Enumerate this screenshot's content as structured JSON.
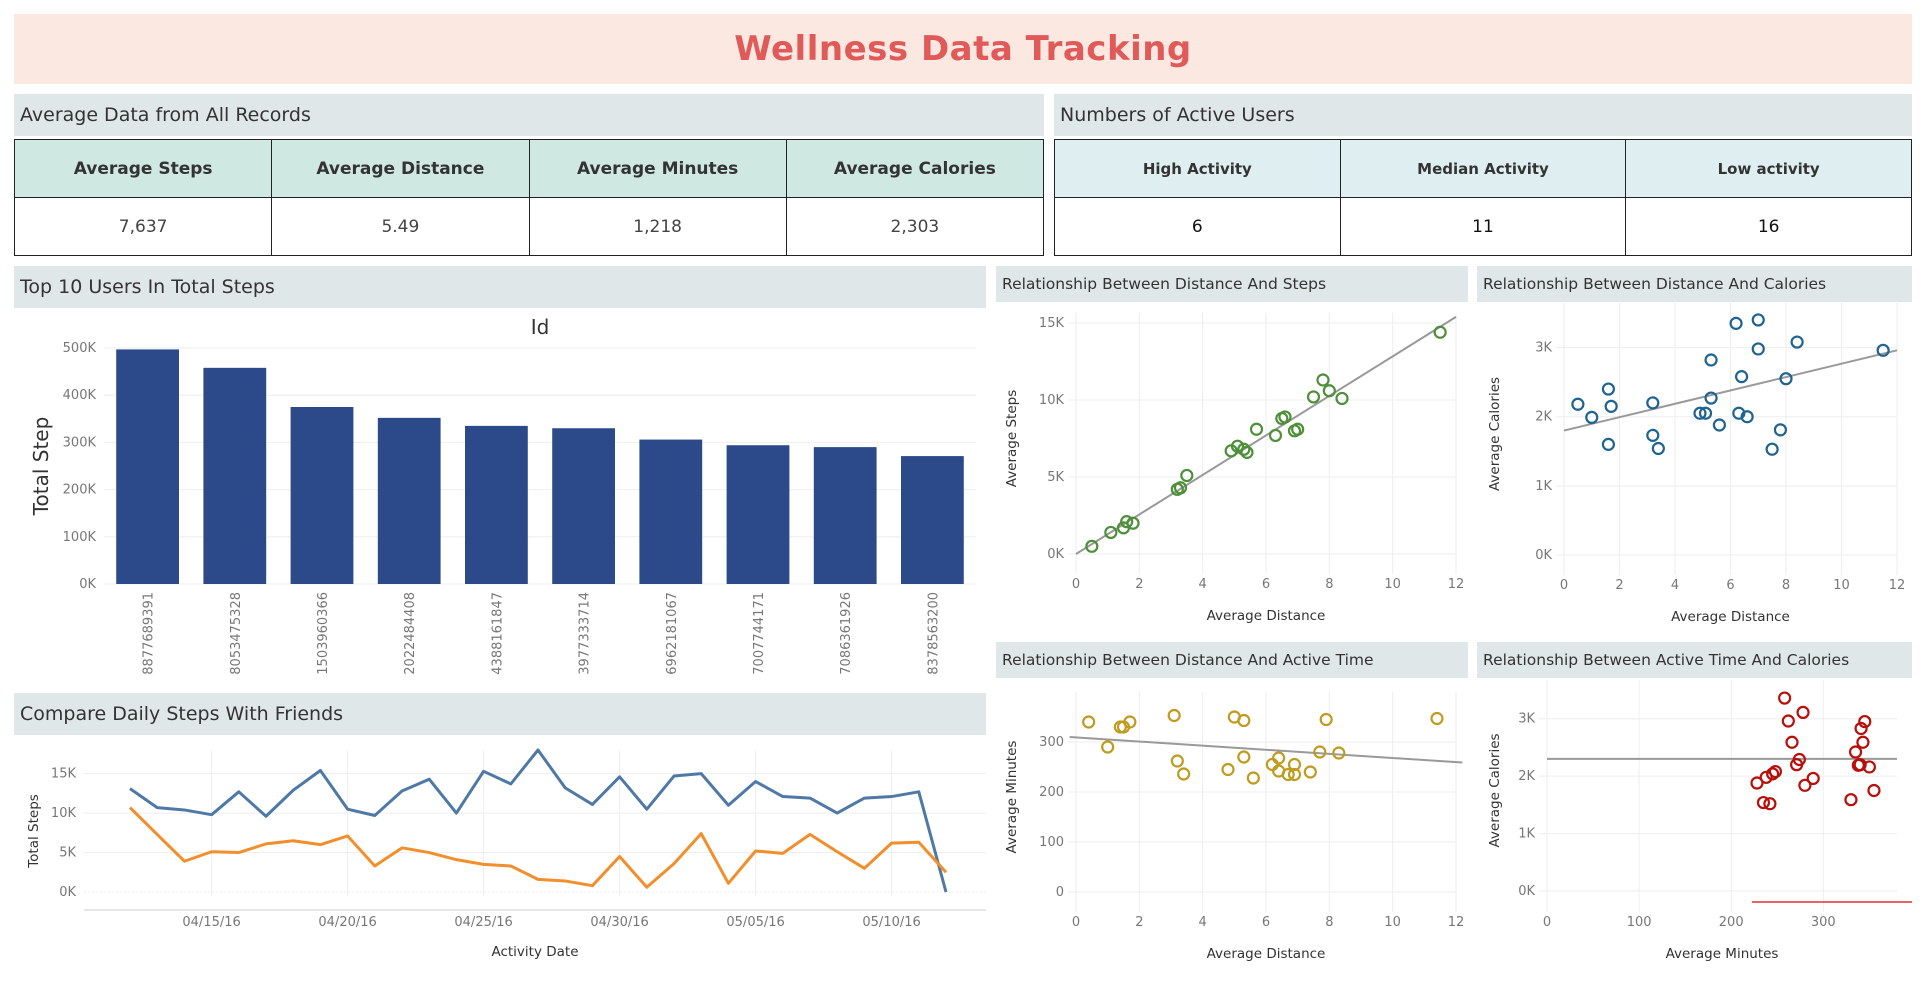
{
  "header": {
    "title": "Wellness Data Tracking"
  },
  "averages": {
    "title": "Average Data from All Records",
    "columns": [
      "Average Steps",
      "Average Distance",
      "Average Minutes",
      "Average Calories"
    ],
    "values": [
      "7,637",
      "5.49",
      "1,218",
      "2,303"
    ],
    "header_color": "#cfe8e2"
  },
  "active_users": {
    "title": "Numbers of Active Users",
    "columns": [
      "High Activity",
      "Median Activity",
      "Low activity"
    ],
    "values": [
      "6",
      "11",
      "16"
    ],
    "header_color": "#dfeef1"
  },
  "colors": {
    "title": "#e05a5a",
    "title_bg": "#fbe8e1",
    "panel_head": "#e0e7e8",
    "bar": "#2c4a8a",
    "line_blue": "#4e79a7",
    "line_orange": "#f28e2b",
    "green": "#4e8f3a",
    "teal": "#1f6391",
    "gold": "#bf9b1f",
    "red": "#b80f0a",
    "trend": "#999999"
  },
  "chart_data": [
    {
      "id": "top10",
      "type": "bar",
      "panel_title": "Top 10 Users In Total Steps",
      "title": "Id",
      "ylabel": "Total Step",
      "categories": [
        "8877689391",
        "8053475328",
        "1503960366",
        "2022484408",
        "4388161847",
        "3977333714",
        "6962181067",
        "7007744171",
        "7086361926",
        "8378563200"
      ],
      "values": [
        497000,
        458000,
        375000,
        352000,
        335000,
        330000,
        306000,
        294000,
        290000,
        271000
      ],
      "ylim": [
        0,
        500000
      ],
      "yticks": [
        0,
        100000,
        200000,
        300000,
        400000,
        500000
      ],
      "ytick_labels": [
        "0K",
        "100K",
        "200K",
        "300K",
        "400K",
        "500K"
      ]
    },
    {
      "id": "daily",
      "type": "line",
      "panel_title": "Compare Daily Steps With Friends",
      "xlabel": "Activity Date",
      "ylabel": "Total Steps",
      "x": [
        "04/12/16",
        "04/13/16",
        "04/14/16",
        "04/15/16",
        "04/16/16",
        "04/17/16",
        "04/18/16",
        "04/19/16",
        "04/20/16",
        "04/21/16",
        "04/22/16",
        "04/23/16",
        "04/24/16",
        "04/25/16",
        "04/26/16",
        "04/27/16",
        "04/28/16",
        "04/29/16",
        "04/30/16",
        "05/01/16",
        "05/02/16",
        "05/03/16",
        "05/04/16",
        "05/05/16",
        "05/06/16",
        "05/07/16",
        "05/08/16",
        "05/09/16",
        "05/10/16",
        "05/11/16",
        "05/12/16"
      ],
      "xtick_labels": [
        "04/15/16",
        "04/20/16",
        "04/25/16",
        "04/30/16",
        "05/05/16",
        "05/10/16"
      ],
      "xtick_index": [
        3,
        8,
        13,
        18,
        23,
        28
      ],
      "series": [
        {
          "values": [
            13100,
            10700,
            10400,
            9800,
            12700,
            9600,
            12900,
            15400,
            10500,
            9700,
            12800,
            14300,
            10000,
            15300,
            13700,
            18000,
            13200,
            11100,
            14600,
            10500,
            14700,
            15000,
            11000,
            14000,
            12100,
            11900,
            10000,
            11900,
            12100,
            12700,
            0
          ]
        },
        {
          "values": [
            10700,
            7300,
            3900,
            5100,
            5000,
            6100,
            6500,
            6000,
            7100,
            3300,
            5600,
            5000,
            4100,
            3500,
            3300,
            1600,
            1400,
            800,
            4500,
            600,
            3600,
            7400,
            1100,
            5200,
            4900,
            7300,
            5100,
            3000,
            6200,
            6300,
            2500
          ]
        }
      ],
      "ylim": [
        0,
        18000
      ],
      "yticks": [
        0,
        5000,
        10000,
        15000
      ],
      "ytick_labels": [
        "0K",
        "5K",
        "10K",
        "15K"
      ]
    },
    {
      "id": "dist-steps",
      "type": "scatter",
      "panel_title": "Relationship Between Distance And Steps",
      "xlabel": "Average Distance",
      "ylabel": "Average Steps",
      "xlim": [
        0,
        12
      ],
      "ylim": [
        0,
        15000
      ],
      "xticks": [
        0,
        2,
        4,
        6,
        8,
        10,
        12
      ],
      "yticks": [
        0,
        5000,
        10000,
        15000
      ],
      "ytick_labels": [
        "0K",
        "5K",
        "10K",
        "15K"
      ],
      "trend": [
        [
          0,
          0
        ],
        [
          12,
          15400
        ]
      ],
      "x": [
        0.5,
        1.1,
        1.5,
        1.6,
        1.8,
        3.2,
        3.3,
        3.5,
        4.9,
        5.1,
        5.3,
        5.4,
        5.7,
        6.3,
        6.5,
        6.6,
        6.9,
        7.0,
        7.5,
        7.8,
        8.0,
        8.4,
        11.5
      ],
      "y": [
        500,
        1400,
        1700,
        2100,
        2000,
        4200,
        4300,
        5100,
        6700,
        7000,
        6800,
        6600,
        8100,
        7700,
        8800,
        8900,
        8000,
        8100,
        10200,
        11300,
        10600,
        10100,
        14400
      ]
    },
    {
      "id": "dist-cal",
      "type": "scatter",
      "panel_title": "Relationship Between Distance And Calories",
      "xlabel": "Average Distance",
      "ylabel": "Average Calories",
      "xlim": [
        0,
        12
      ],
      "ylim": [
        0,
        3500
      ],
      "xticks": [
        0,
        2,
        4,
        6,
        8,
        10,
        12
      ],
      "yticks": [
        0,
        1000,
        2000,
        3000
      ],
      "ytick_labels": [
        "0K",
        "1K",
        "2K",
        "3K"
      ],
      "trend": [
        [
          0,
          1800
        ],
        [
          12,
          2960
        ]
      ],
      "x": [
        0.5,
        1.0,
        1.6,
        1.6,
        1.7,
        3.2,
        3.4,
        3.2,
        4.9,
        5.1,
        5.3,
        5.6,
        5.3,
        6.2,
        6.4,
        6.3,
        6.6,
        7.0,
        7.0,
        7.5,
        7.8,
        8.0,
        8.4,
        11.5
      ],
      "y": [
        2180,
        1990,
        2400,
        1600,
        2150,
        2200,
        1540,
        1730,
        2050,
        2050,
        2270,
        1880,
        2820,
        3350,
        2580,
        2050,
        2000,
        3400,
        2980,
        1530,
        1810,
        2550,
        3080,
        2960
      ]
    },
    {
      "id": "dist-time",
      "type": "scatter",
      "panel_title": "Relationship Between Distance And Active Time",
      "xlabel": "Average Distance",
      "ylabel": "Average Minutes",
      "xlim": [
        0,
        12
      ],
      "ylim": [
        0,
        380
      ],
      "xticks": [
        0,
        2,
        4,
        6,
        8,
        10,
        12
      ],
      "yticks": [
        0,
        100,
        200,
        300
      ],
      "trend": [
        [
          -0.2,
          310
        ],
        [
          12.2,
          259
        ]
      ],
      "x": [
        0.4,
        1.0,
        1.4,
        1.5,
        1.7,
        3.1,
        3.2,
        3.4,
        4.8,
        5.0,
        5.3,
        5.3,
        5.6,
        6.2,
        6.4,
        6.4,
        6.7,
        6.9,
        6.9,
        7.4,
        7.7,
        7.9,
        8.3,
        11.4
      ],
      "y": [
        340,
        290,
        330,
        330,
        340,
        353,
        262,
        236,
        245,
        350,
        343,
        270,
        228,
        255,
        268,
        242,
        235,
        255,
        235,
        240,
        280,
        345,
        278,
        347
      ]
    },
    {
      "id": "time-cal",
      "type": "scatter",
      "panel_title": "Relationship Between Active Time And Calories",
      "xlabel": "Average Minutes",
      "ylabel": "Average Calories",
      "xlim": [
        0,
        380
      ],
      "ylim": [
        0,
        3500
      ],
      "xticks": [
        0,
        100,
        200,
        300
      ],
      "yticks": [
        0,
        1000,
        2000,
        3000
      ],
      "ytick_labels": [
        "0K",
        "1K",
        "2K",
        "3K"
      ],
      "trend": [
        [
          0,
          2300
        ],
        [
          380,
          2300
        ]
      ],
      "x": [
        228,
        235,
        238,
        242,
        245,
        248,
        258,
        262,
        266,
        271,
        274,
        278,
        280,
        289,
        330,
        335,
        338,
        340,
        341,
        343,
        345,
        350,
        355
      ],
      "y": [
        1880,
        1540,
        1980,
        1520,
        2040,
        2080,
        3360,
        2960,
        2590,
        2200,
        2290,
        3110,
        1840,
        1960,
        1590,
        2420,
        2190,
        2200,
        2830,
        2590,
        2950,
        2160,
        1750
      ]
    }
  ]
}
